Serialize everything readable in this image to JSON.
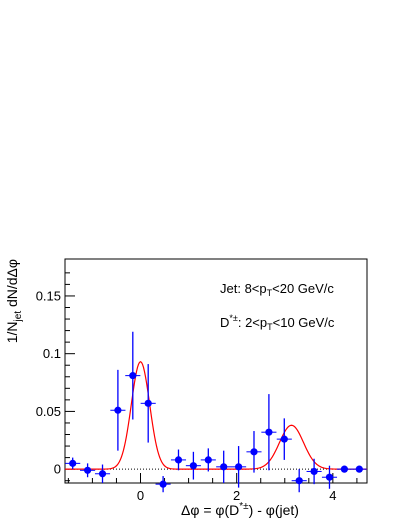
{
  "chart_data": {
    "type": "scatter",
    "xlabel": "Δφ = φ(D*±) - φ(jet)",
    "ylabel": "1/Njet dN/dΔφ",
    "xlim": [
      -1.57,
      4.71
    ],
    "ylim": [
      -0.012,
      0.182
    ],
    "x_ticks": [
      0,
      2,
      4
    ],
    "x_tick_labels": [
      "0",
      "2",
      "4"
    ],
    "y_ticks": [
      0,
      0.05,
      0.1,
      0.15
    ],
    "y_tick_labels": [
      "0",
      "0.05",
      "0.1",
      "0.15"
    ],
    "annotations": [
      "Jet: 8<pT<20 GeV/c",
      "D*±: 2<pT<10 GeV/c"
    ],
    "series": [
      {
        "type": "scatter",
        "color": "#0000ff",
        "x": [
          -1.41,
          -1.1,
          -0.79,
          -0.47,
          -0.16,
          0.16,
          0.47,
          0.79,
          1.1,
          1.41,
          1.73,
          2.04,
          2.36,
          2.67,
          2.99,
          3.3,
          3.61,
          3.93,
          4.24,
          4.55
        ],
        "y": [
          0.005,
          -0.001,
          -0.004,
          0.051,
          0.081,
          0.057,
          -0.013,
          0.008,
          0.003,
          0.008,
          0.002,
          0.002,
          0.015,
          0.032,
          0.026,
          -0.01,
          -0.002,
          -0.007,
          0.0,
          0.0
        ],
        "yerr": [
          0.005,
          0.006,
          0.008,
          0.035,
          0.038,
          0.034,
          0.007,
          0.009,
          0.012,
          0.01,
          0.014,
          0.018,
          0.018,
          0.033,
          0.018,
          0.01,
          0.011,
          0.01,
          0.0,
          0.0
        ],
        "xerr": 0.157
      },
      {
        "type": "line",
        "color": "#ff0000",
        "model": "double-gaussian",
        "params": {
          "A1": 0.093,
          "mu1": 0.0,
          "sigma1": 0.19,
          "A2": 0.038,
          "mu2": 3.14,
          "sigma2": 0.25
        }
      }
    ],
    "reference_line": {
      "y": 0,
      "style": "dotted"
    },
    "grid": false,
    "legend": "none"
  }
}
